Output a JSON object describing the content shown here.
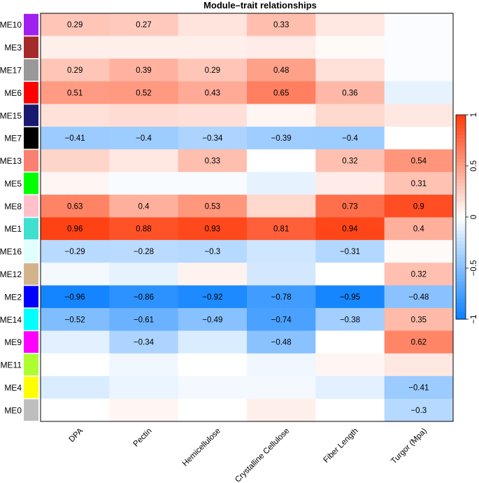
{
  "chart_data": {
    "type": "heatmap",
    "title": "Module–trait relationships",
    "columns": [
      "DPA",
      "Pectin",
      "Hemicellulose",
      "Crystalline Cellulose",
      "Fiber Length",
      "Turgor (Mpa)"
    ],
    "rows": [
      "ME10",
      "ME3",
      "ME17",
      "ME6",
      "ME15",
      "ME7",
      "ME13",
      "ME5",
      "ME8",
      "ME1",
      "ME16",
      "ME12",
      "ME2",
      "ME14",
      "ME9",
      "ME11",
      "ME4",
      "ME0"
    ],
    "row_colors": [
      "#a020f0",
      "#a52a2a",
      "#999999",
      "#ff0000",
      "#191970",
      "#000000",
      "#fa8072",
      "#00ff00",
      "#ffc0cb",
      "#40e0d0",
      "#e0ffff",
      "#d2b48c",
      "#0000ff",
      "#00ffff",
      "#ff00ff",
      "#adff2f",
      "#ffff00",
      "#bebebe"
    ],
    "values": [
      [
        0.29,
        0.27,
        0.14,
        0.33,
        0.12,
        -0.02
      ],
      [
        0.08,
        0.08,
        0.08,
        0.1,
        0.03,
        -0.02
      ],
      [
        0.29,
        0.39,
        0.29,
        0.48,
        0.15,
        -0.02
      ],
      [
        0.51,
        0.52,
        0.43,
        0.65,
        0.36,
        -0.1
      ],
      [
        0.15,
        0.18,
        0.16,
        0.05,
        0.2,
        0.12
      ],
      [
        -0.41,
        -0.4,
        -0.34,
        -0.39,
        -0.4,
        0.0
      ],
      [
        0.22,
        0.12,
        0.33,
        0.0,
        0.32,
        0.54
      ],
      [
        0.05,
        -0.03,
        -0.03,
        -0.1,
        0.1,
        0.31
      ],
      [
        0.63,
        0.4,
        0.53,
        0.2,
        0.73,
        0.9
      ],
      [
        0.96,
        0.88,
        0.93,
        0.81,
        0.94,
        0.4
      ],
      [
        -0.29,
        -0.28,
        -0.3,
        -0.2,
        -0.31,
        0.03
      ],
      [
        -0.05,
        -0.1,
        0.06,
        -0.18,
        0.0,
        0.32
      ],
      [
        -0.96,
        -0.86,
        -0.92,
        -0.78,
        -0.95,
        -0.48
      ],
      [
        -0.52,
        -0.61,
        -0.49,
        -0.74,
        -0.38,
        0.35
      ],
      [
        -0.12,
        -0.34,
        -0.15,
        -0.48,
        0.0,
        0.62
      ],
      [
        0.0,
        -0.06,
        0.0,
        -0.06,
        0.05,
        0.12
      ],
      [
        -0.15,
        -0.08,
        -0.05,
        -0.05,
        -0.12,
        -0.41
      ],
      [
        0.0,
        0.05,
        0.0,
        0.08,
        0.0,
        -0.3
      ]
    ],
    "labels": [
      [
        "0.29",
        "0.27",
        "",
        "0.33",
        "",
        ""
      ],
      [
        "",
        "",
        "",
        "",
        "",
        ""
      ],
      [
        "0.29",
        "0.39",
        "0.29",
        "0.48",
        "",
        ""
      ],
      [
        "0.51",
        "0.52",
        "0.43",
        "0.65",
        "0.36",
        ""
      ],
      [
        "",
        "",
        "",
        "",
        "",
        ""
      ],
      [
        "−0.41",
        "−0.4",
        "−0.34",
        "−0.39",
        "−0.4",
        ""
      ],
      [
        "",
        "",
        "0.33",
        "",
        "0.32",
        "0.54"
      ],
      [
        "",
        "",
        "",
        "",
        "",
        "0.31"
      ],
      [
        "0.63",
        "0.4",
        "0.53",
        "",
        "0.73",
        "0.9"
      ],
      [
        "0.96",
        "0.88",
        "0.93",
        "0.81",
        "0.94",
        "0.4"
      ],
      [
        "−0.29",
        "−0.28",
        "−0.3",
        "",
        "−0.31",
        ""
      ],
      [
        "",
        "",
        "",
        "",
        "",
        "0.32"
      ],
      [
        "−0.96",
        "−0.86",
        "−0.92",
        "−0.78",
        "−0.95",
        "−0.48"
      ],
      [
        "−0.52",
        "−0.61",
        "−0.49",
        "−0.74",
        "−0.38",
        "0.35"
      ],
      [
        "",
        "−0.34",
        "",
        "−0.48",
        "",
        "0.62"
      ],
      [
        "",
        "",
        "",
        "",
        "",
        ""
      ],
      [
        "",
        "",
        "",
        "",
        "",
        "−0.41"
      ],
      [
        "",
        "",
        "",
        "",
        "",
        "−0.3"
      ]
    ],
    "scale": {
      "min": -1,
      "max": 1,
      "ticks": [
        -1,
        -0.5,
        0,
        0.5,
        1
      ],
      "tick_labels": [
        "−1",
        "−0.5",
        "0",
        "0.5",
        "1"
      ],
      "neg_color": "#0a80ff",
      "zero_color": "#ffffff",
      "pos_color": "#ff3a0a"
    }
  }
}
